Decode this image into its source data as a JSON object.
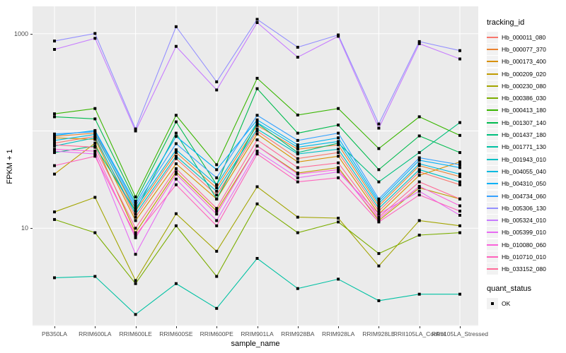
{
  "figure": {
    "background": "#FFFFFF",
    "panel_background": "#EBEBEB",
    "gridline_color": "#FFFFFF",
    "tick_label_color": "#4D4D4D"
  },
  "axes": {
    "x": {
      "title": "sample_name"
    },
    "y": {
      "title": "FPKM + 1",
      "scale": "log10",
      "tick_labels": [
        "1000",
        "10"
      ],
      "tick_values": [
        1000,
        10
      ]
    }
  },
  "legend": {
    "tracking_title": "tracking_id",
    "quant_title": "quant_status",
    "quant_label": "OK",
    "quant_marker_color": "#000000"
  },
  "chart_data": {
    "type": "line",
    "title": "",
    "xlabel": "sample_name",
    "ylabel": "FPKM + 1",
    "y_scale": "log10",
    "ylim": [
      1,
      1900
    ],
    "grid": true,
    "gridline_values": [
      1,
      10,
      100,
      1000
    ],
    "legend_position": "right",
    "point_marker": {
      "shape": "square",
      "color": "#000000",
      "label": "OK"
    },
    "categories": [
      "PB350LA",
      "RRIM600LA",
      "RRIM600LE",
      "RRIM600SE",
      "RRIM600PE",
      "RRIM901LA",
      "RRIM928BA",
      "RRIM928LA",
      "RRIM928LE",
      "RRII105LA_Control",
      "RRII105LA_Stressed"
    ],
    "series": [
      {
        "name": "Hb_000011_080",
        "color": "#F8766D",
        "values": [
          75,
          88,
          13,
          52,
          22,
          100,
          52,
          60,
          15,
          38,
          28
        ]
      },
      {
        "name": "Hb_000077_370",
        "color": "#EA8331",
        "values": [
          88,
          95,
          15,
          60,
          26,
          114,
          65,
          72,
          17,
          44,
          34
        ]
      },
      {
        "name": "Hb_000173_400",
        "color": "#D89000",
        "values": [
          85,
          82,
          12,
          46,
          20,
          93,
          48,
          55,
          14,
          35,
          48
        ]
      },
      {
        "name": "Hb_000209_020",
        "color": "#C09B00",
        "values": [
          36,
          75,
          9,
          38,
          15,
          70,
          37,
          42,
          12,
          26,
          20
        ]
      },
      {
        "name": "Hb_000230_080",
        "color": "#A3A500",
        "values": [
          14.7,
          20.8,
          2.9,
          14.1,
          5.8,
          26.7,
          13,
          12.7,
          4.1,
          12,
          10.6
        ]
      },
      {
        "name": "Hb_000386_030",
        "color": "#7CAE00",
        "values": [
          12.3,
          9,
          2.7,
          10.6,
          3.2,
          17.8,
          9,
          11.6,
          5.5,
          8.5,
          9
        ]
      },
      {
        "name": "Hb_000413_180",
        "color": "#39B600",
        "values": [
          150,
          170,
          21,
          145,
          45,
          348,
          146,
          170,
          66,
          140,
          90
        ]
      },
      {
        "name": "Hb_001307_140",
        "color": "#00BB4E",
        "values": [
          140,
          133,
          19,
          124,
          28,
          272,
          95,
          115,
          40,
          89,
          60
        ]
      },
      {
        "name": "Hb_001437_180",
        "color": "#00BF7D",
        "values": [
          60,
          70,
          15,
          95,
          20,
          120,
          60,
          75,
          30,
          60,
          122
        ]
      },
      {
        "name": "Hb_001771_130",
        "color": "#00C1A3",
        "values": [
          3.1,
          3.2,
          1.3,
          2.7,
          1.5,
          4.9,
          2.4,
          3.0,
          1.8,
          2.1,
          2.1
        ]
      },
      {
        "name": "Hb_001943_010",
        "color": "#00BFC4",
        "values": [
          70,
          85,
          14,
          55,
          24,
          105,
          58,
          65,
          16,
          40,
          30
        ]
      },
      {
        "name": "Hb_004055_040",
        "color": "#00BAE0",
        "values": [
          80,
          92,
          16,
          64,
          28,
          122,
          68,
          78,
          18,
          46,
          36
        ]
      },
      {
        "name": "Hb_004310_050",
        "color": "#00B0F6",
        "values": [
          90,
          101,
          18,
          88,
          40,
          130,
          72,
          85,
          19,
          50,
          42
        ]
      },
      {
        "name": "Hb_004734_060",
        "color": "#35A2FF",
        "values": [
          93,
          98,
          17,
          74,
          33,
          145,
          80,
          95,
          20,
          53,
          45
        ]
      },
      {
        "name": "Hb_005306_130",
        "color": "#9590FF",
        "values": [
          840,
          1005,
          105,
          1180,
          320,
          1405,
          726,
          970,
          118,
          830,
          670
        ]
      },
      {
        "name": "Hb_005324_010",
        "color": "#C77CFF",
        "values": [
          689,
          895,
          100,
          740,
          264,
          1300,
          573,
          940,
          107,
          790,
          550
        ]
      },
      {
        "name": "Hb_005399_010",
        "color": "#E76BF3",
        "values": [
          62,
          58,
          5.4,
          32,
          12,
          62,
          33,
          38,
          14,
          24,
          13.6
        ]
      },
      {
        "name": "Hb_010080_060",
        "color": "#FA62DB",
        "values": [
          65,
          62,
          8,
          36,
          14,
          70,
          36,
          40,
          12.5,
          27,
          17
        ]
      },
      {
        "name": "Hb_010710_010",
        "color": "#FF62BC",
        "values": [
          44,
          55,
          8.5,
          28,
          10.6,
          58,
          30,
          33,
          11.6,
          22,
          15
        ]
      },
      {
        "name": "Hb_033152_080",
        "color": "#FF6A98",
        "values": [
          72,
          68,
          10,
          41,
          16,
          81,
          42,
          47,
          13,
          30,
          20
        ]
      }
    ]
  }
}
